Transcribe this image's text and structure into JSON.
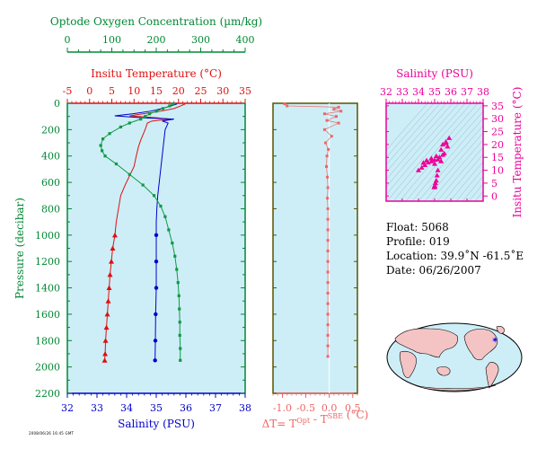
{
  "chart_data": [
    {
      "type": "line",
      "top_axis_1": {
        "label": "Optode Oxygen Concentration (µm/kg)",
        "ticks": [
          0,
          100,
          200,
          300,
          400
        ],
        "range": [
          0,
          400
        ],
        "color": "#008833"
      },
      "top_axis_2": {
        "label": "Insitu Temperature (°C)",
        "ticks": [
          -5,
          0,
          5,
          10,
          15,
          20,
          25,
          30,
          35
        ],
        "range": [
          -5,
          35
        ],
        "color": "#dd1111"
      },
      "bottom_axis": {
        "label": "Salinity (PSU)",
        "ticks": [
          32,
          33,
          34,
          35,
          36,
          37,
          38
        ],
        "range": [
          32,
          38
        ],
        "color": "#0000cc"
      },
      "y_axis": {
        "label": "Pressure (decibar)",
        "ticks": [
          0,
          200,
          400,
          600,
          800,
          1000,
          1200,
          1400,
          1600,
          1800,
          2000,
          2200
        ],
        "range": [
          0,
          2200
        ],
        "inverted": true,
        "color": "#008833"
      },
      "grid": false,
      "series": [
        {
          "name": "",
          "variable": "temperature",
          "color": "#dd1111",
          "points": [
            [
              21.5,
              5
            ],
            [
              20.5,
              20
            ],
            [
              19,
              40
            ],
            [
              16,
              60
            ],
            [
              12,
              80
            ],
            [
              9,
              95
            ],
            [
              15,
              110
            ],
            [
              18,
              120
            ],
            [
              14,
              135
            ],
            [
              13,
              150
            ],
            [
              12.5,
              200
            ],
            [
              11.5,
              280
            ],
            [
              11,
              330
            ],
            [
              10.5,
              400
            ],
            [
              10,
              480
            ],
            [
              9,
              550
            ],
            [
              8,
              620
            ],
            [
              7,
              700
            ],
            [
              6.5,
              800
            ],
            [
              6,
              900
            ],
            [
              5.7,
              1000
            ],
            [
              5.2,
              1100
            ],
            [
              4.9,
              1200
            ],
            [
              4.6,
              1300
            ],
            [
              4.4,
              1400
            ],
            [
              4.2,
              1500
            ],
            [
              4.0,
              1600
            ],
            [
              3.8,
              1700
            ],
            [
              3.6,
              1800
            ],
            [
              3.5,
              1900
            ],
            [
              3.4,
              1950
            ]
          ]
        },
        {
          "name": "",
          "variable": "salinity",
          "color": "#0000cc",
          "points": [
            [
              35.7,
              5
            ],
            [
              35.5,
              20
            ],
            [
              35.2,
              40
            ],
            [
              34.8,
              60
            ],
            [
              34.2,
              80
            ],
            [
              33.6,
              95
            ],
            [
              34.5,
              110
            ],
            [
              35.6,
              120
            ],
            [
              35.2,
              135
            ],
            [
              35.4,
              150
            ],
            [
              35.3,
              200
            ],
            [
              35.25,
              300
            ],
            [
              35.2,
              400
            ],
            [
              35.15,
              500
            ],
            [
              35.1,
              600
            ],
            [
              35.05,
              700
            ],
            [
              35.02,
              800
            ],
            [
              35.0,
              900
            ],
            [
              35.0,
              1000
            ],
            [
              35.0,
              1200
            ],
            [
              35.0,
              1400
            ],
            [
              34.98,
              1600
            ],
            [
              34.97,
              1800
            ],
            [
              34.96,
              1950
            ]
          ]
        },
        {
          "name": "",
          "variable": "oxygen",
          "color": "#119944",
          "points": [
            [
              238,
              5
            ],
            [
              230,
              20
            ],
            [
              215,
              40
            ],
            [
              200,
              60
            ],
            [
              185,
              80
            ],
            [
              175,
              100
            ],
            [
              165,
              120
            ],
            [
              140,
              150
            ],
            [
              120,
              180
            ],
            [
              95,
              230
            ],
            [
              80,
              270
            ],
            [
              75,
              320
            ],
            [
              78,
              360
            ],
            [
              85,
              400
            ],
            [
              110,
              460
            ],
            [
              140,
              540
            ],
            [
              170,
              620
            ],
            [
              195,
              700
            ],
            [
              210,
              780
            ],
            [
              220,
              860
            ],
            [
              228,
              960
            ],
            [
              236,
              1060
            ],
            [
              242,
              1160
            ],
            [
              246,
              1260
            ],
            [
              249,
              1360
            ],
            [
              251,
              1460
            ],
            [
              252,
              1560
            ],
            [
              253,
              1660
            ],
            [
              253,
              1760
            ],
            [
              254,
              1860
            ],
            [
              254,
              1950
            ]
          ]
        }
      ]
    },
    {
      "type": "scatter",
      "x_axis": {
        "label": "ΔT= T^Opt - T^SBE (°C)",
        "ticks": [
          "-1.0",
          "-0.5",
          "0.0",
          "0.5"
        ],
        "range": [
          -1.2,
          0.6
        ],
        "color": "#ee6666"
      },
      "y_range": [
        0,
        2200
      ],
      "series": [
        {
          "name": "",
          "color": "#ee6666",
          "points": [
            [
              -0.95,
              5
            ],
            [
              -0.9,
              20
            ],
            [
              0.2,
              30
            ],
            [
              0.1,
              45
            ],
            [
              0.25,
              60
            ],
            [
              -0.1,
              80
            ],
            [
              0.15,
              100
            ],
            [
              -0.05,
              130
            ],
            [
              0.2,
              150
            ],
            [
              -0.1,
              200
            ],
            [
              0.05,
              250
            ],
            [
              -0.08,
              300
            ],
            [
              -0.02,
              350
            ],
            [
              -0.05,
              400
            ],
            [
              -0.06,
              480
            ],
            [
              -0.04,
              560
            ],
            [
              -0.03,
              640
            ],
            [
              -0.04,
              720
            ],
            [
              -0.03,
              800
            ],
            [
              -0.03,
              880
            ],
            [
              -0.03,
              960
            ],
            [
              -0.03,
              1040
            ],
            [
              -0.03,
              1120
            ],
            [
              -0.03,
              1200
            ],
            [
              -0.03,
              1280
            ],
            [
              -0.03,
              1360
            ],
            [
              -0.03,
              1440
            ],
            [
              -0.03,
              1520
            ],
            [
              -0.03,
              1600
            ],
            [
              -0.03,
              1680
            ],
            [
              -0.03,
              1760
            ],
            [
              -0.03,
              1840
            ],
            [
              -0.03,
              1920
            ]
          ]
        }
      ]
    },
    {
      "type": "scatter",
      "title": "Salinity (PSU)",
      "x_axis": {
        "ticks": [
          32,
          33,
          34,
          35,
          36,
          37,
          38
        ],
        "range": [
          32,
          38
        ]
      },
      "y_axis": {
        "label": "Insitu Temperature (°C)",
        "ticks": [
          0,
          5,
          10,
          15,
          20,
          25,
          30,
          35
        ],
        "range": [
          -2,
          36
        ]
      },
      "color": "#ee0099",
      "series": [
        {
          "name": "",
          "points": [
            [
              34.0,
              10
            ],
            [
              34.2,
              11
            ],
            [
              34.4,
              12
            ],
            [
              34.6,
              13
            ],
            [
              34.8,
              13.5
            ],
            [
              35.0,
              14
            ],
            [
              35.2,
              14.2
            ],
            [
              35.3,
              15
            ],
            [
              35.5,
              16
            ],
            [
              35.6,
              16.5
            ],
            [
              35.1,
              15.5
            ],
            [
              34.8,
              14.6
            ],
            [
              34.5,
              13.8
            ],
            [
              34.3,
              12.9
            ],
            [
              35.0,
              12.5
            ],
            [
              35.4,
              13.5
            ],
            [
              35.2,
              10
            ],
            [
              35.15,
              8
            ],
            [
              35.1,
              6
            ],
            [
              35.05,
              5
            ],
            [
              35.0,
              4
            ],
            [
              35.0,
              3.5
            ],
            [
              35.0,
              3.6
            ],
            [
              34.97,
              3.4
            ],
            [
              35.5,
              20
            ],
            [
              35.7,
              21
            ],
            [
              35.9,
              22.5
            ],
            [
              35.7,
              20.5
            ],
            [
              35.4,
              18
            ],
            [
              35.8,
              19.2
            ]
          ]
        }
      ]
    }
  ],
  "info": {
    "float": "Float:  5068",
    "profile": "Profile:  019",
    "location": "Location:  39.9˚N  -61.5˚E",
    "date": "Date:  06/26/2007"
  },
  "stamp": "2008/06/26 16:45 GMT"
}
